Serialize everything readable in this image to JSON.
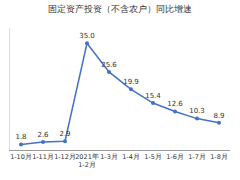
{
  "chart_data": {
    "type": "line",
    "title": "固定资产投资（不含农户）同比增速",
    "categories": [
      "1-10月",
      "1-11月",
      "1-12月",
      "2021年\n1-2月",
      "1-3月",
      "1-4月",
      "1-5月",
      "1-6月",
      "1-7月",
      "1-8月"
    ],
    "values": [
      1.8,
      2.6,
      2.9,
      35.0,
      25.6,
      19.9,
      15.4,
      12.6,
      10.3,
      8.9
    ],
    "value_labels": [
      "1.8",
      "2.6",
      "2.9",
      "35.0",
      "25.6",
      "19.9",
      "15.4",
      "12.6",
      "10.3",
      "8.9"
    ],
    "color": "#4472c4",
    "marker": "circle",
    "data_labels": true,
    "grid": false,
    "tick_labels": "x",
    "ylim": [
      0,
      40
    ]
  }
}
